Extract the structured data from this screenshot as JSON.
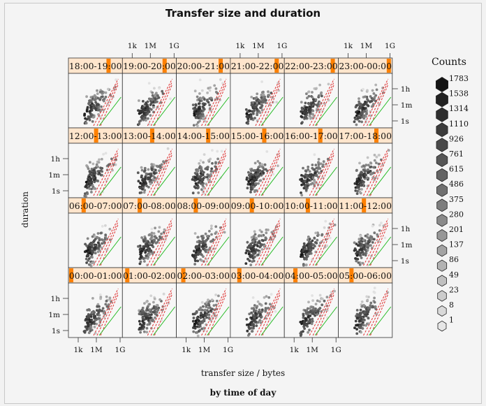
{
  "chart_data": {
    "type": "heatmap",
    "title": "Transfer size and duration",
    "subtitle": "by time of day",
    "xlabel": "transfer size / bytes",
    "ylabel": "duration",
    "x_ticks": [
      "1k",
      "1M",
      "1G"
    ],
    "y_ticks": [
      "1h",
      "1m",
      "1s"
    ],
    "panels": [
      [
        "18:00-19:00",
        "19:00-20:00",
        "20:00-21:00",
        "21:00-22:00",
        "22:00-23:00",
        "23:00-00:00"
      ],
      [
        "12:00-13:00",
        "13:00-14:00",
        "14:00-15:00",
        "15:00-16:00",
        "16:00-17:00",
        "17:00-18:00"
      ],
      [
        "06:00-07:00",
        "07:00-08:00",
        "08:00-09:00",
        "09:00-10:00",
        "10:00-11:00",
        "11:00-12:00"
      ],
      [
        "00:00-01:00",
        "01:00-02:00",
        "02:00-03:00",
        "03:00-04:00",
        "04:00-05:00",
        "05:00-06:00"
      ]
    ],
    "legend": {
      "title": "Counts",
      "levels": [
        "1783",
        "1538",
        "1314",
        "1110",
        "926",
        "761",
        "615",
        "486",
        "375",
        "280",
        "201",
        "137",
        "86",
        "49",
        "23",
        "8",
        "1"
      ]
    }
  },
  "colors": {
    "panel_bg": "#f7f7f7",
    "strip_bg": "#ffe5cc",
    "strip_marker": "#ff8000",
    "reference_line": "#22bb22",
    "bandwidth_lines": "#e03030"
  }
}
